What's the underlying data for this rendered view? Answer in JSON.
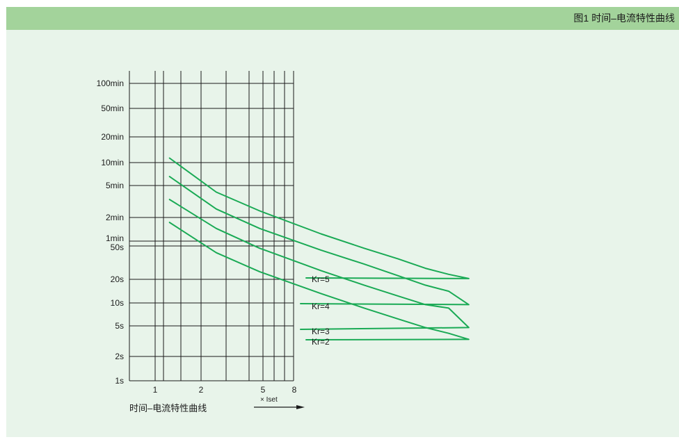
{
  "header": {
    "title": "图1 时间–电流特性曲线"
  },
  "colors": {
    "panel_bg": "#e8f4ea",
    "header_bg": "#a3d39b",
    "grid": "#1a1a1a",
    "curve": "#1aaa55"
  },
  "chart_data": {
    "type": "line",
    "caption": "时间–电流特性曲线",
    "x_unit_label": "× Iset",
    "x_ticks": [
      "1",
      "2",
      "5",
      "8"
    ],
    "y_ticks": [
      "100min",
      "50min",
      "20min",
      "10min",
      "5min",
      "2min",
      "1min",
      "50s",
      "20s",
      "10s",
      "5s",
      "2s",
      "1s"
    ],
    "series": [
      {
        "name": "Kr=5",
        "x": [
          1.1,
          1.5,
          2,
          3,
          4,
          5,
          6,
          7,
          8
        ],
        "y_seconds": [
          840,
          300,
          170,
          85,
          55,
          40,
          30,
          25,
          22
        ]
      },
      {
        "name": "Kr=4",
        "x": [
          1.1,
          1.5,
          2,
          3,
          4,
          5,
          6,
          7,
          8
        ],
        "y_seconds": [
          480,
          180,
          100,
          52,
          34,
          24,
          18,
          15,
          10
        ]
      },
      {
        "name": "Kr=3",
        "x": [
          1.1,
          1.5,
          2,
          3,
          4,
          5,
          6,
          7,
          8
        ],
        "y_seconds": [
          240,
          100,
          55,
          28,
          18,
          13,
          10,
          9,
          5
        ]
      },
      {
        "name": "Kr=2",
        "x": [
          1.1,
          1.5,
          2,
          3,
          4,
          5,
          6,
          7,
          8
        ],
        "y_seconds": [
          120,
          48,
          27,
          14,
          9,
          6.5,
          5,
          4.2,
          3.5
        ]
      }
    ]
  }
}
